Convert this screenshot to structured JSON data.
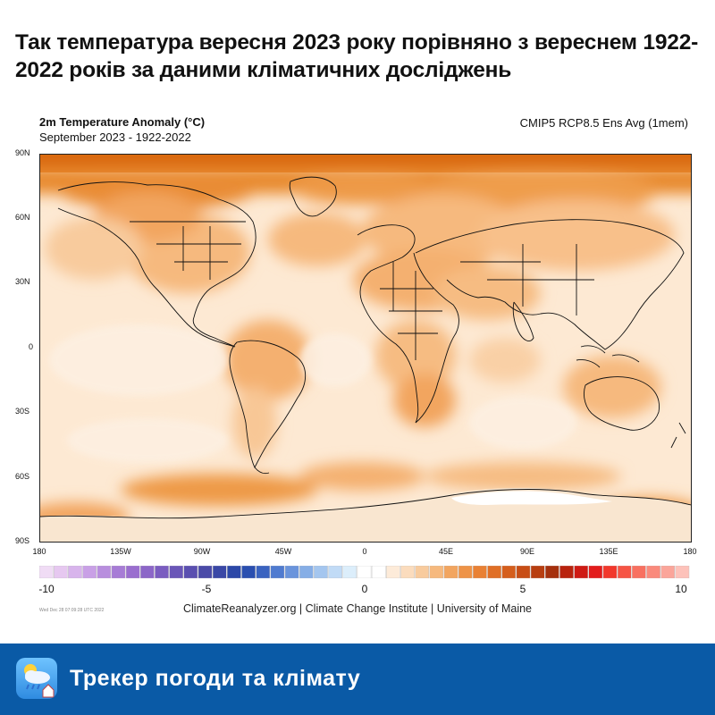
{
  "headline": "Так температура вересня 2023 року порівняно з вереснем 1922-2022 років за даними кліматичних досліджень",
  "map": {
    "title": "2m Temperature Anomaly (°C)",
    "subtitle": "September 2023 - 1922-2022",
    "model": "CMIP5 RCP8.5 Ens Avg (1mem)",
    "lat_labels": [
      "90N",
      "60N",
      "30N",
      "0",
      "30S",
      "60S",
      "90S"
    ],
    "lon_labels": [
      "180",
      "135W",
      "90W",
      "45W",
      "0",
      "45E",
      "90E",
      "135E",
      "180"
    ]
  },
  "colorbar": {
    "ticks": [
      "-10",
      "-5",
      "0",
      "5",
      "10"
    ],
    "colors": [
      "#f0dcf5",
      "#e6c8f0",
      "#d8b4ec",
      "#c9a0e6",
      "#b88ede",
      "#a77cd6",
      "#9a6ecf",
      "#8c66c8",
      "#7a5cc0",
      "#6a56b8",
      "#5a4fb0",
      "#4a4aa8",
      "#3a48a6",
      "#2c48a8",
      "#2a4fb0",
      "#3a63c0",
      "#4f7bd0",
      "#6a94dc",
      "#86aee6",
      "#a4c6ef",
      "#c1dbf6",
      "#dceefb",
      "#ffffff",
      "#ffffff",
      "#fdebd9",
      "#fbdcbd",
      "#f8cb9d",
      "#f6b97e",
      "#f2a55f",
      "#ee9347",
      "#e98134",
      "#e06f26",
      "#d55e1c",
      "#c84d15",
      "#b83e10",
      "#a5300d",
      "#b9230e",
      "#cf1a14",
      "#e31c1c",
      "#f2382c",
      "#f65445",
      "#f87060",
      "#fa8a7c",
      "#fba59a",
      "#fdc2ba"
    ]
  },
  "stamp": "Wed Dec 28 07:09:28 UTC 2022",
  "credit": "ClimateReanalyzer.org | Climate Change Institute | University of Maine",
  "footer": {
    "label": "Трекер погоди та клімату"
  }
}
